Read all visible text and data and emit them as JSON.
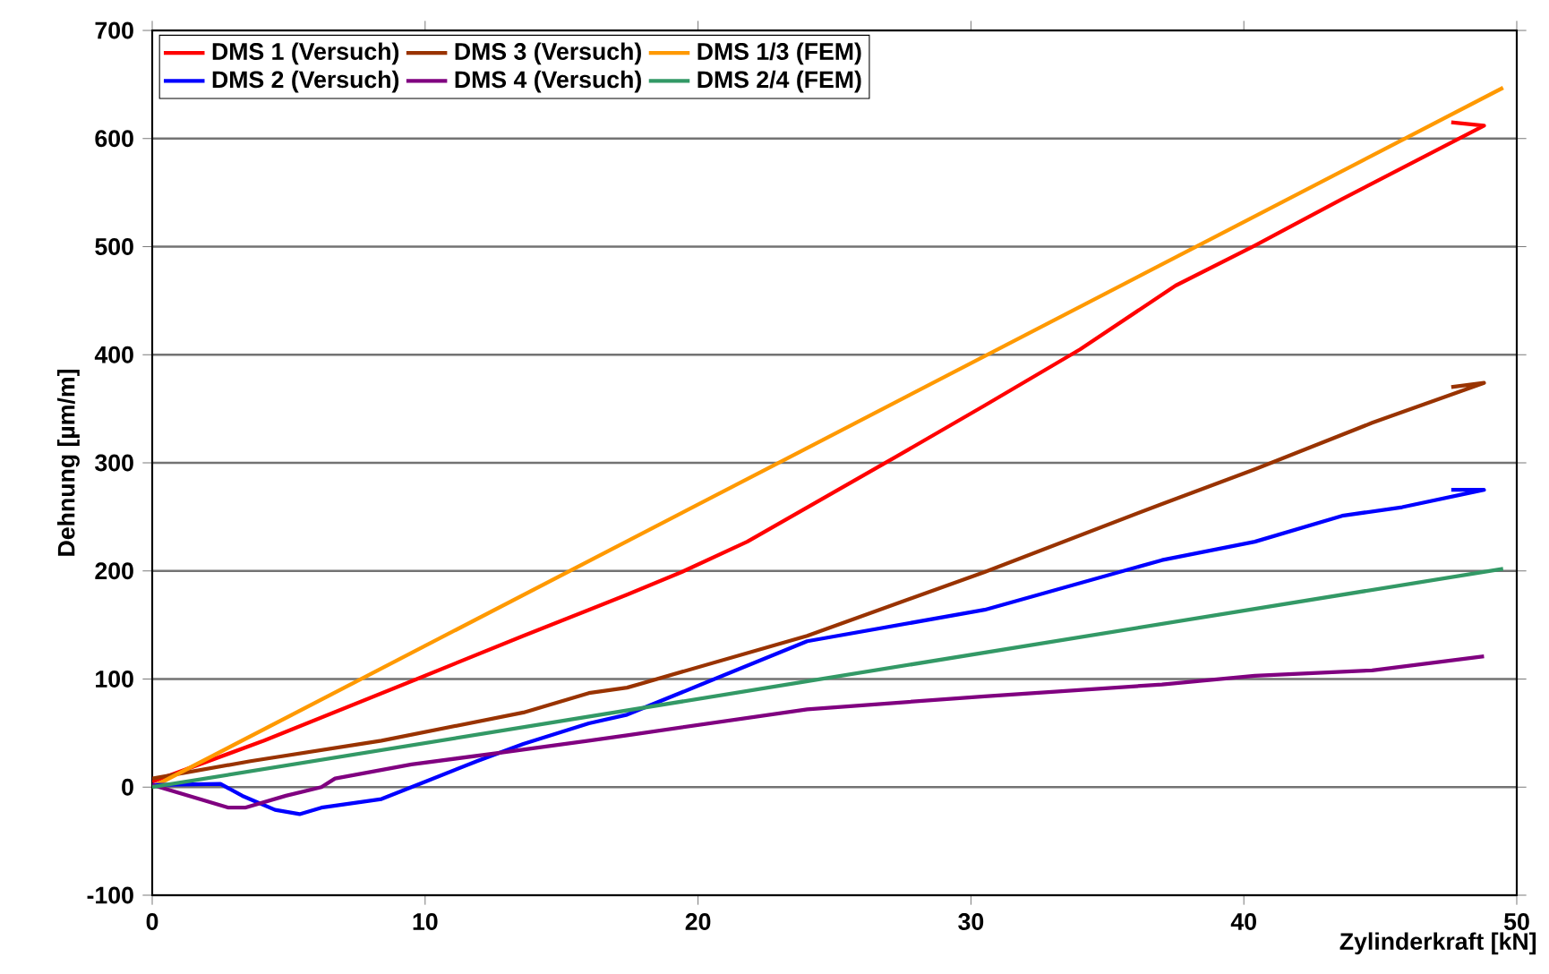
{
  "chart_data": {
    "type": "line",
    "xlabel": "Zylinderkraft [kN]",
    "ylabel": "Dehnung [µm/m]",
    "xlim": [
      0,
      50
    ],
    "xticks": [
      0,
      10,
      20,
      30,
      40,
      50
    ],
    "ylim": [
      -100,
      700
    ],
    "yticks": [
      -100,
      0,
      100,
      200,
      300,
      400,
      500,
      600,
      700
    ],
    "grid": "y",
    "legend": "top left",
    "marker": "none",
    "line_style": "solid",
    "series": [
      {
        "name": "DMS 1 (Versuch)",
        "color": "#ff0000",
        "x": [
          0,
          4.1,
          9.7,
          13.6,
          16,
          17.4,
          19.4,
          21.8,
          26.8,
          30.5,
          34,
          37.5,
          40.4,
          43.6,
          48.8,
          47.6
        ],
        "values": [
          5,
          43,
          100,
          140,
          164,
          178,
          199,
          227,
          299,
          353,
          405,
          464,
          501,
          544,
          612,
          615
        ]
      },
      {
        "name": "DMS 3 (Versuch)",
        "color": "#993300",
        "x": [
          0,
          3.6,
          8.4,
          13.6,
          16,
          17.4,
          24,
          30.5,
          37,
          40.4,
          44.7,
          48.8,
          47.6
        ],
        "values": [
          8,
          24,
          43,
          69,
          87,
          92,
          140,
          199,
          262,
          294,
          337,
          374,
          370
        ]
      },
      {
        "name": "DMS 1/3 (FEM)",
        "color": "#ff9900",
        "x": [
          0,
          49.5
        ],
        "values": [
          0,
          647
        ]
      },
      {
        "name": "DMS 2 (Versuch)",
        "color": "#0000ff",
        "x": [
          0,
          2.5,
          3.3,
          4.5,
          5.4,
          6.2,
          8.4,
          10,
          11.9,
          13.6,
          16,
          17.4,
          24,
          30.5,
          37,
          40.4,
          43.6,
          45.8,
          48.8,
          47.6
        ],
        "values": [
          2,
          3,
          -8,
          -21,
          -25,
          -19,
          -11,
          5,
          24,
          40,
          59,
          67,
          135,
          164,
          210,
          227,
          251,
          259,
          275,
          275
        ]
      },
      {
        "name": "DMS 4 (Versuch)",
        "color": "#800080",
        "x": [
          0,
          2.8,
          3.4,
          4.9,
          6.2,
          6.7,
          9.5,
          12.8,
          16,
          17.4,
          24,
          30.5,
          37,
          40.4,
          44.7,
          48.8
        ],
        "values": [
          2,
          -19,
          -19,
          -8,
          0,
          8,
          21,
          32,
          43,
          48,
          72,
          84,
          95,
          103,
          108,
          121
        ]
      },
      {
        "name": "DMS 2/4 (FEM)",
        "color": "#339966",
        "x": [
          0,
          49.5
        ],
        "values": [
          0,
          202
        ]
      }
    ]
  }
}
